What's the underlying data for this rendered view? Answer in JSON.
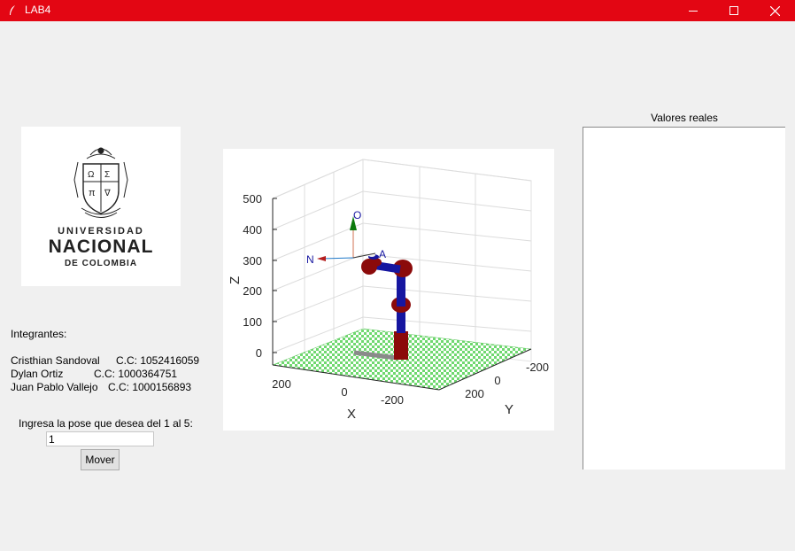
{
  "window": {
    "title": "LAB4"
  },
  "logo": {
    "line1": "UNIVERSIDAD",
    "line2": "NACIONAL",
    "line3": "DE COLOMBIA"
  },
  "members_title": "Integrantes:",
  "members": [
    {
      "name": "Cristhian Sandoval",
      "cc": "C.C: 1052416059"
    },
    {
      "name": "Dylan Ortiz",
      "cc": "C.C: 1000364751"
    },
    {
      "name": "Juan Pablo Vallejo",
      "cc": "C.C: 1000156893"
    }
  ],
  "pose": {
    "prompt": "Ingresa la pose que desea del 1 al 5:",
    "value": "1",
    "button_label": "Mover"
  },
  "plot": {
    "z_label": "Z",
    "x_label": "X",
    "y_label": "Y",
    "z_ticks": [
      "500",
      "400",
      "300",
      "200",
      "100",
      "0"
    ],
    "x_ticks": [
      "200",
      "0",
      "-200"
    ],
    "y_ticks": [
      "-200",
      "0",
      "200"
    ],
    "frame_labels": {
      "o": "O",
      "n": "N",
      "a": "A"
    }
  },
  "values_panel": {
    "title": "Valores reales"
  },
  "colors": {
    "titlebar": "#e30613",
    "link_blue": "#1616a0",
    "joint_red": "#8b0a0a",
    "floor_green": "#6fd86f"
  }
}
